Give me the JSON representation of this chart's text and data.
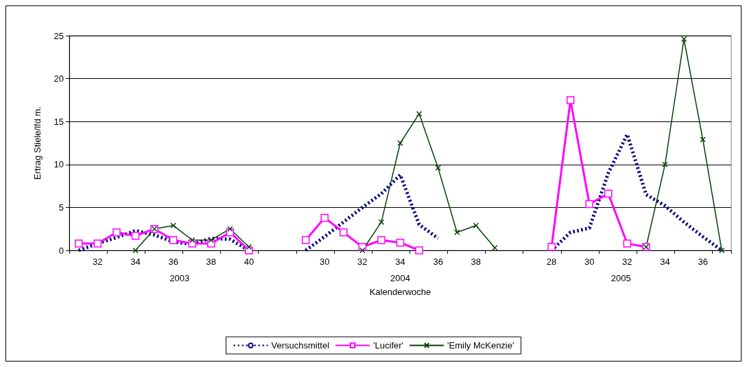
{
  "chart_data": {
    "type": "line",
    "ylabel": "Ertrag Stiele/lfd m.",
    "xlabel": "Kalenderwoche",
    "annotations": [
      "2003",
      "2004",
      "2005"
    ],
    "categories": [
      null,
      "32",
      null,
      "34",
      null,
      "36",
      null,
      "38",
      null,
      "40",
      null,
      null,
      null,
      "30",
      null,
      "32",
      null,
      "34",
      null,
      "36",
      null,
      "38",
      null,
      null,
      null,
      "28",
      null,
      "30",
      null,
      "32",
      null,
      "34",
      null,
      "36",
      null
    ],
    "series": [
      {
        "name": "Versuchsmittel",
        "color": "#000080",
        "line_style": "dashed",
        "marker": "none",
        "values": [
          0,
          0.8,
          1.5,
          2.3,
          1.8,
          1.0,
          0.7,
          1.4,
          1.3,
          0,
          null,
          null,
          0,
          1.6,
          3.3,
          5.0,
          6.6,
          8.8,
          3.0,
          1.4,
          null,
          null,
          null,
          null,
          null,
          0,
          2.1,
          2.6,
          9.0,
          13.5,
          6.5,
          5.2,
          3.3,
          1.6,
          0
        ]
      },
      {
        "name": "'Lucifer'",
        "color": "#ff00ff",
        "line_style": "solid",
        "marker": "square",
        "values": [
          0.8,
          0.8,
          2.1,
          1.7,
          2.5,
          1.2,
          0.8,
          0.8,
          2.1,
          0,
          null,
          null,
          1.2,
          3.8,
          2.1,
          0.4,
          1.2,
          0.9,
          0,
          null,
          null,
          null,
          null,
          null,
          null,
          0.4,
          17.5,
          5.4,
          6.6,
          0.8,
          0.4,
          null,
          null,
          null,
          null
        ]
      },
      {
        "name": "'Emily McKenzie'",
        "color": "#004000",
        "line_style": "solid",
        "marker": "cross",
        "values": [
          null,
          null,
          null,
          0,
          2.5,
          2.9,
          1.2,
          1.2,
          2.5,
          0.4,
          null,
          null,
          null,
          null,
          null,
          0,
          3.3,
          12.5,
          15.9,
          9.6,
          2.1,
          2.9,
          0.3,
          null,
          null,
          null,
          null,
          null,
          null,
          null,
          0.4,
          10,
          24.6,
          12.9,
          0
        ]
      }
    ],
    "ylim": [
      0,
      25
    ],
    "yticks": [
      0,
      5,
      10,
      15,
      20,
      25
    ],
    "grid": "y",
    "legend": "bottom"
  }
}
